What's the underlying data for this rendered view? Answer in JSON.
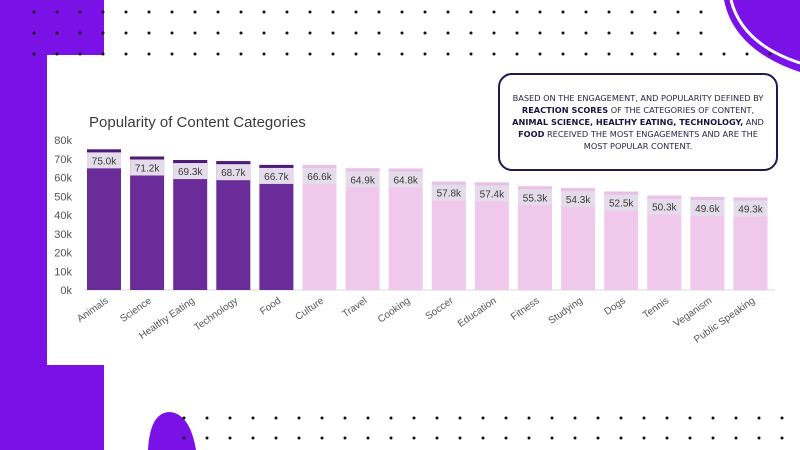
{
  "callout": {
    "t1": "BASED ON THE ENGAGEMENT, AND POPULARITY DEFINED BY ",
    "b1": "REACTION SCORES",
    "t2": " OF THE CATEGORIES OF CONTENT, ",
    "b2": "ANIMAL SCIENCE, HEALTHY EATING, TECHNOLOGY,",
    "t3": " AND ",
    "b3": "FOOD",
    "t4": " RECEIVED THE MOST ENGAGEMENTS AND ARE THE MOST POPULAR CONTENT."
  },
  "colors": {
    "brand_purple": "#7a12e8",
    "top_dark": "#6a2c98",
    "top_light": "#f0c8ec",
    "cap_dark": "#4e1a78",
    "cap_light": "#e9bfe6",
    "label_band": "#e4dcea"
  },
  "chart_data": {
    "type": "bar",
    "title": "Popularity of Content Categories",
    "categories": [
      "Animals",
      "Science",
      "Healthy Eating",
      "Technology",
      "Food",
      "Culture",
      "Travel",
      "Cooking",
      "Soccer",
      "Education",
      "Fitness",
      "Studying",
      "Dogs",
      "Tennis",
      "Veganism",
      "Public Speaking"
    ],
    "values": [
      75.0,
      71.2,
      69.3,
      68.7,
      66.7,
      66.6,
      64.9,
      64.8,
      57.8,
      57.4,
      55.3,
      54.3,
      52.5,
      50.3,
      49.6,
      49.3
    ],
    "data_labels": [
      "75.0k",
      "71.2k",
      "69.3k",
      "68.7k",
      "66.7k",
      "66.6k",
      "64.9k",
      "64.8k",
      "57.8k",
      "57.4k",
      "55.3k",
      "54.3k",
      "52.5k",
      "50.3k",
      "49.6k",
      "49.3k"
    ],
    "highlight_count": 5,
    "unit": "thousands",
    "ylim": [
      0,
      80
    ],
    "yticks": [
      "0k",
      "10k",
      "20k",
      "30k",
      "40k",
      "50k",
      "60k",
      "70k",
      "80k"
    ],
    "xlabel": "",
    "ylabel": "",
    "grid": false,
    "legend": "none"
  }
}
